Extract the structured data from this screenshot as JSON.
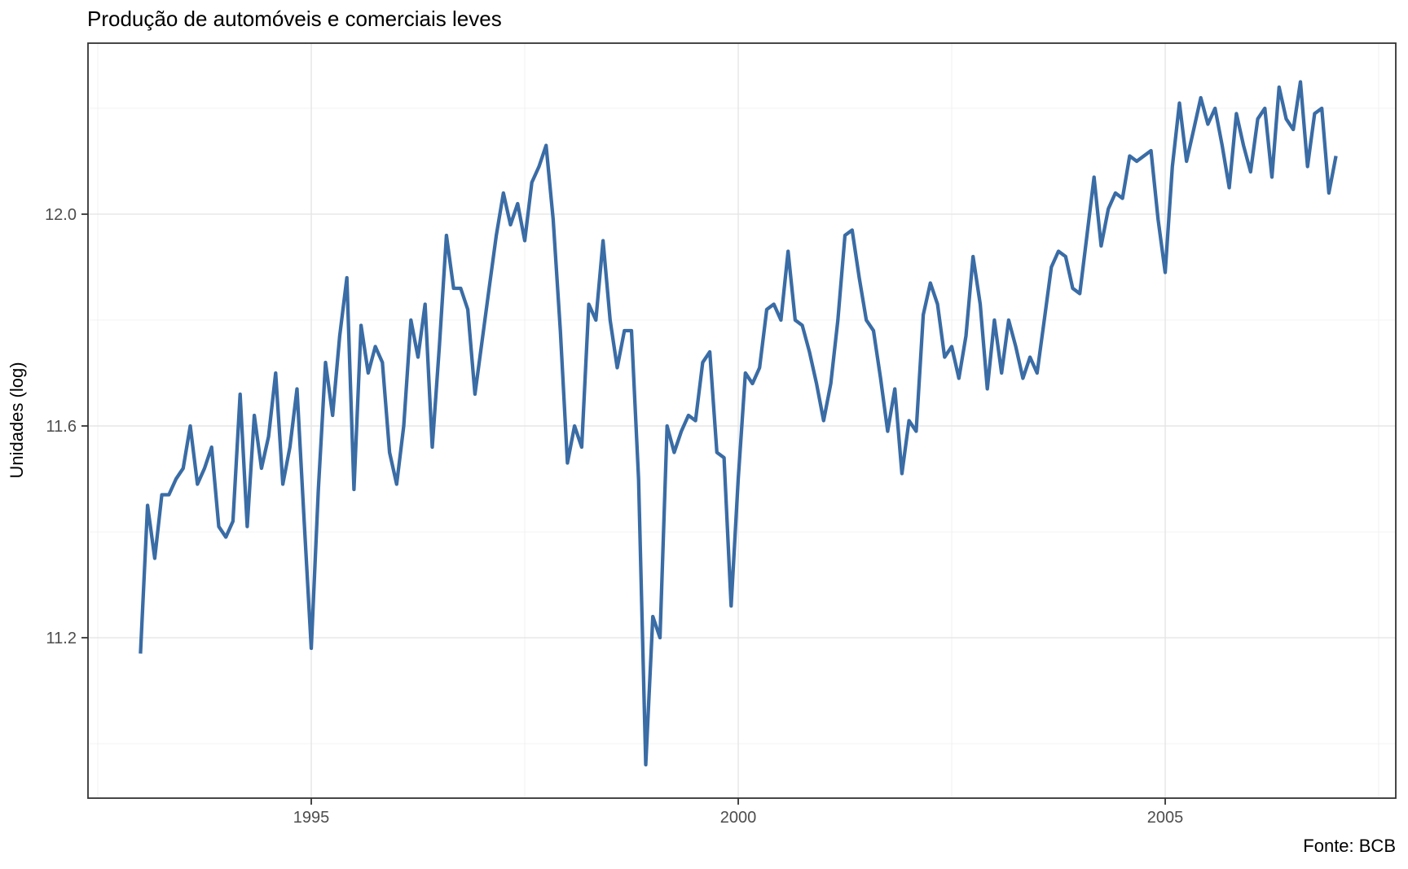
{
  "title": "Produção de automóveis e comerciais leves",
  "source_note": "Fonte: BCB",
  "chart_data": {
    "type": "line",
    "title": "Produção de automóveis e comerciais leves",
    "xlabel": "",
    "ylabel": "Unidades (log)",
    "caption": "Fonte: BCB",
    "legend_position": "none",
    "grid": true,
    "frequency": "monthly",
    "x_start": "1993-01",
    "x_end": "2007-01",
    "xlim": [
      1992.3855,
      2007.7
    ],
    "ylim": [
      10.897,
      12.323
    ],
    "x_major_ticks": [
      1995,
      2000,
      2005
    ],
    "x_tick_labels": [
      "1995",
      "2000",
      "2005"
    ],
    "x_minor_ticks": [
      1992.5,
      1997.5,
      2002.5,
      2007.5
    ],
    "y_major_ticks": [
      11.2,
      11.6,
      12.0
    ],
    "y_tick_labels": [
      "11.2",
      "11.6",
      "12.0"
    ],
    "y_minor_ticks": [
      11.0,
      11.4,
      11.8,
      12.2
    ],
    "series": [
      {
        "name": "Unidades (log)",
        "values": [
          11.17,
          11.45,
          11.35,
          11.47,
          11.47,
          11.5,
          11.52,
          11.6,
          11.49,
          11.52,
          11.56,
          11.41,
          11.39,
          11.42,
          11.66,
          11.41,
          11.62,
          11.52,
          11.58,
          11.7,
          11.49,
          11.56,
          11.67,
          11.42,
          11.18,
          11.48,
          11.72,
          11.62,
          11.77,
          11.88,
          11.48,
          11.79,
          11.7,
          11.75,
          11.72,
          11.55,
          11.49,
          11.6,
          11.8,
          11.73,
          11.83,
          11.56,
          11.75,
          11.96,
          11.86,
          11.86,
          11.82,
          11.66,
          11.76,
          11.86,
          11.96,
          12.04,
          11.98,
          12.02,
          11.95,
          12.06,
          12.09,
          12.13,
          11.99,
          11.78,
          11.53,
          11.6,
          11.56,
          11.83,
          11.8,
          11.95,
          11.8,
          11.71,
          11.78,
          11.78,
          11.5,
          10.96,
          11.24,
          11.2,
          11.6,
          11.55,
          11.59,
          11.62,
          11.61,
          11.72,
          11.74,
          11.55,
          11.54,
          11.26,
          11.5,
          11.7,
          11.68,
          11.71,
          11.82,
          11.83,
          11.8,
          11.93,
          11.8,
          11.79,
          11.74,
          11.68,
          11.61,
          11.68,
          11.8,
          11.96,
          11.97,
          11.88,
          11.8,
          11.78,
          11.69,
          11.59,
          11.67,
          11.51,
          11.61,
          11.59,
          11.81,
          11.87,
          11.83,
          11.73,
          11.75,
          11.69,
          11.77,
          11.92,
          11.83,
          11.67,
          11.8,
          11.7,
          11.8,
          11.75,
          11.69,
          11.73,
          11.7,
          11.8,
          11.9,
          11.93,
          11.92,
          11.86,
          11.85,
          11.96,
          12.07,
          11.94,
          12.01,
          12.04,
          12.03,
          12.11,
          12.1,
          12.11,
          12.12,
          11.99,
          11.89,
          12.09,
          12.21,
          12.1,
          12.16,
          12.22,
          12.17,
          12.2,
          12.13,
          12.05,
          12.19,
          12.13,
          12.08,
          12.18,
          12.2,
          12.07,
          12.24,
          12.18,
          12.16,
          12.25,
          12.09,
          12.19,
          12.2,
          12.04,
          12.11
        ]
      }
    ],
    "theme": {
      "line_color": "#3A6CA5",
      "panel_background": "#FFFFFF",
      "plot_background": "#FFFFFF",
      "grid_major_color": "#E5E5E5",
      "grid_minor_color": "#F0F0F0",
      "panel_border_color": "#333333",
      "tick_color": "#333333",
      "tick_label_color": "#4D4D4D",
      "title_color": "#000000"
    }
  }
}
